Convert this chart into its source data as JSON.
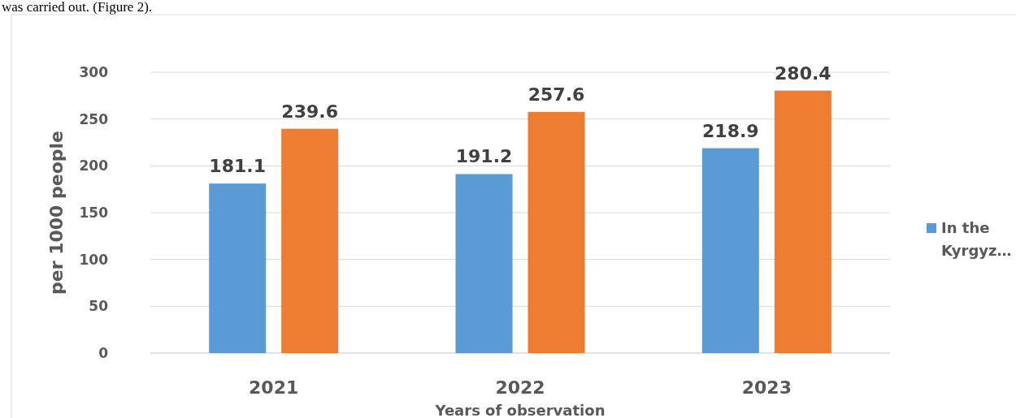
{
  "chart_data": {
    "type": "bar",
    "xlabel": "Years of observation",
    "ylabel": "per 1000 people",
    "categories": [
      "2021",
      "2022",
      "2023"
    ],
    "series": [
      {
        "name": "In the Kyrgyz…",
        "color": "#5b9bd5",
        "values": [
          181.1,
          191.2,
          218.9
        ]
      },
      {
        "color": "#ed7d31",
        "values": [
          239.6,
          257.6,
          280.4
        ]
      }
    ],
    "ylim": [
      0,
      300
    ],
    "yticks": [
      0,
      50,
      100,
      150,
      200,
      250,
      300
    ],
    "grid": "y",
    "legend": "right",
    "data_labels": true,
    "annotations": [
      "was carried out. (Figure 2)."
    ]
  }
}
